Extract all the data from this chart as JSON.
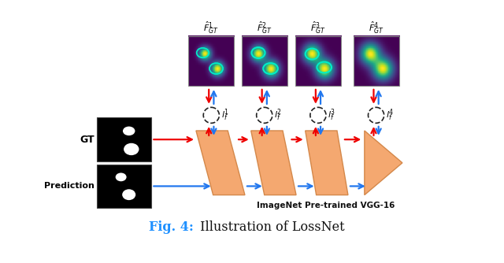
{
  "bg_color": "#ffffff",
  "trap_color": "#F4A870",
  "trap_edge_color": "#D4884A",
  "arrow_red": "#EE0000",
  "arrow_blue": "#2277EE",
  "gt_label": "GT",
  "pred_label": "Prediction",
  "imagenet_label": "ImageNet Pre-trained VGG-16",
  "feature_labels": [
    "$\\hat{F}_{GT}^{1}$",
    "$\\hat{F}_{GT}^{2}$",
    "$\\hat{F}_{GT}^{3}$",
    "$\\hat{F}_{GT}^{4}$"
  ],
  "loss_labels": [
    "$l_f^1$",
    "$l_f^2$",
    "$l_f^3$",
    "$l_f^4$"
  ],
  "title_blue": "Fig. 4:",
  "title_black": " Illustration of LossNet",
  "title_color_blue": "#1E90FF",
  "title_color_black": "#111111",
  "dashed_circle_color": "#222222",
  "feat_bg_color": "#1a0050",
  "img_black": "#000000",
  "img_white": "#ffffff"
}
